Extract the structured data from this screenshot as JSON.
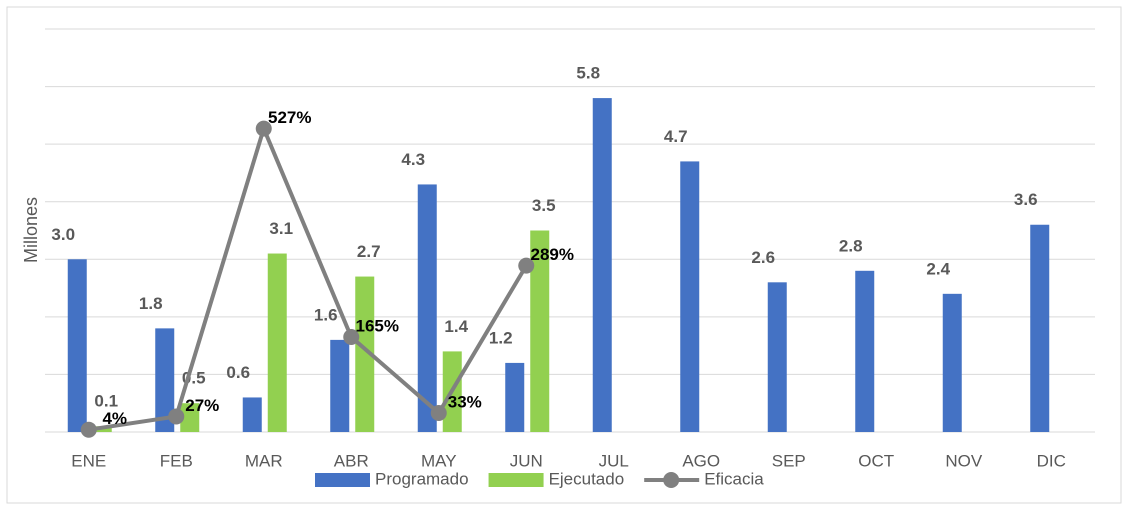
{
  "chart_data": {
    "type": "bar",
    "y_label": "Millones",
    "categories": [
      "ENE",
      "FEB",
      "MAR",
      "ABR",
      "MAY",
      "JUN",
      "JUL",
      "AGO",
      "SEP",
      "OCT",
      "NOV",
      "DIC"
    ],
    "ylim": [
      0,
      7
    ],
    "yticks": [
      0,
      1,
      2,
      3,
      4,
      5,
      6,
      7
    ],
    "grid": true,
    "y2lim": [
      0,
      700
    ],
    "legend": "bottom",
    "series": [
      {
        "name": "Programado",
        "color": "#4472c4",
        "type": "bar",
        "values": [
          3.0,
          1.8,
          0.6,
          1.6,
          4.3,
          1.2,
          5.8,
          4.7,
          2.6,
          2.8,
          2.4,
          3.6
        ],
        "value_labels": [
          "3.0",
          "1.8",
          "0.6",
          "1.6",
          "4.3",
          "1.2",
          "5.8",
          "4.7",
          "2.6",
          "2.8",
          "2.4",
          "3.6"
        ]
      },
      {
        "name": "Ejecutado",
        "color": "#92d050",
        "type": "bar",
        "values": [
          0.1,
          0.5,
          3.1,
          2.7,
          1.4,
          3.5,
          null,
          null,
          null,
          null,
          null,
          null
        ],
        "value_labels": [
          "0.1",
          "0.5",
          "3.1",
          "2.7",
          "1.4",
          "3.5",
          null,
          null,
          null,
          null,
          null,
          null
        ]
      },
      {
        "name": "Eficacia",
        "color": "#808080",
        "type": "line",
        "axis": "y2",
        "values": [
          4,
          27,
          527,
          165,
          33,
          289,
          null,
          null,
          null,
          null,
          null,
          null
        ],
        "value_labels": [
          "4%",
          "27%",
          "527%",
          "165%",
          "33%",
          "289%",
          null,
          null,
          null,
          null,
          null,
          null
        ]
      }
    ]
  }
}
